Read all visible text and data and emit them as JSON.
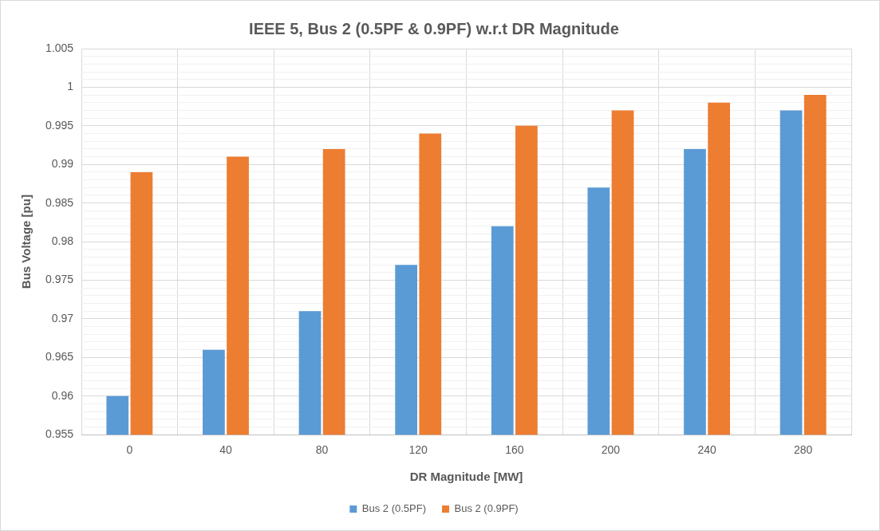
{
  "chart_data": {
    "type": "bar",
    "title": "IEEE 5, Bus 2 (0.5PF & 0.9PF) w.r.t DR Magnitude",
    "xlabel": "DR Magnitude [MW]",
    "ylabel": "Bus Voltage [pu]",
    "categories": [
      "0",
      "40",
      "80",
      "120",
      "160",
      "200",
      "240",
      "280"
    ],
    "series": [
      {
        "name": "Bus 2 (0.5PF)",
        "color": "#5b9bd5",
        "values": [
          0.96,
          0.966,
          0.971,
          0.977,
          0.982,
          0.987,
          0.992,
          0.997
        ]
      },
      {
        "name": "Bus 2 (0.9PF)",
        "color": "#ed7d31",
        "values": [
          0.989,
          0.991,
          0.992,
          0.994,
          0.995,
          0.997,
          0.998,
          0.999
        ]
      }
    ],
    "ylim": [
      0.955,
      1.005
    ],
    "yticks": [
      0.955,
      {
        "value": 0.956,
        "label": null
      },
      {
        "value": 0.957,
        "label": null
      },
      {
        "value": 0.958,
        "label": null
      },
      {
        "value": 0.959,
        "label": null
      },
      0.96,
      {
        "value": 0.961,
        "label": null
      },
      {
        "value": 0.962,
        "label": null
      },
      {
        "value": 0.963,
        "label": null
      },
      {
        "value": 0.964,
        "label": null
      },
      0.965,
      {
        "value": 0.966,
        "label": null
      },
      {
        "value": 0.967,
        "label": null
      },
      {
        "value": 0.968,
        "label": null
      },
      {
        "value": 0.969,
        "label": null
      },
      0.97,
      {
        "value": 0.971,
        "label": null
      },
      {
        "value": 0.972,
        "label": null
      },
      {
        "value": 0.973,
        "label": null
      },
      {
        "value": 0.974,
        "label": null
      },
      0.975,
      {
        "value": 0.976,
        "label": null
      },
      {
        "value": 0.977,
        "label": null
      },
      {
        "value": 0.978,
        "label": null
      },
      {
        "value": 0.979,
        "label": null
      },
      0.98,
      {
        "value": 0.981,
        "label": null
      },
      {
        "value": 0.982,
        "label": null
      },
      {
        "value": 0.983,
        "label": null
      },
      {
        "value": 0.984,
        "label": null
      },
      0.985,
      {
        "value": 0.986,
        "label": null
      },
      {
        "value": 0.987,
        "label": null
      },
      {
        "value": 0.988,
        "label": null
      },
      {
        "value": 0.989,
        "label": null
      },
      0.99,
      {
        "value": 0.991,
        "label": null
      },
      {
        "value": 0.992,
        "label": null
      },
      {
        "value": 0.993,
        "label": null
      },
      {
        "value": 0.994,
        "label": null
      },
      0.995,
      {
        "value": 0.996,
        "label": null
      },
      {
        "value": 0.997,
        "label": null
      },
      {
        "value": 0.998,
        "label": null
      },
      {
        "value": 0.999,
        "label": null
      },
      1,
      {
        "value": 1.001,
        "label": null
      },
      {
        "value": 1.002,
        "label": null
      },
      {
        "value": 1.003,
        "label": null
      },
      {
        "value": 1.004,
        "label": null
      },
      1.005
    ],
    "grid": true,
    "legend": "bottom"
  }
}
